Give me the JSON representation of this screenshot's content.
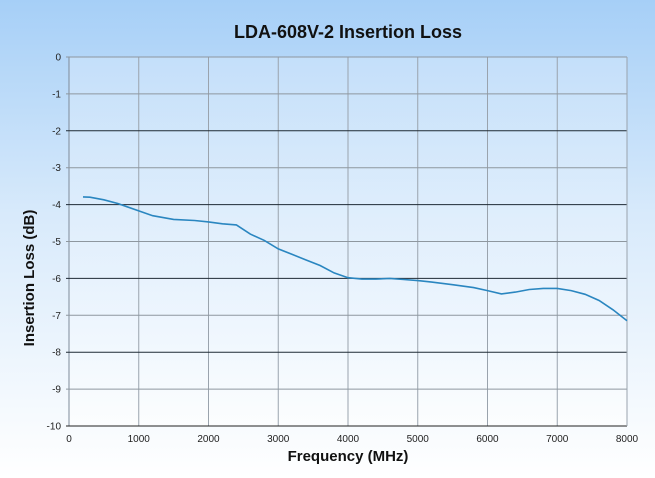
{
  "chart_data": {
    "type": "line",
    "title": "LDA-608V-2 Insertion Loss",
    "xlabel": "Frequency (MHz)",
    "ylabel": "Insertion Loss (dB)",
    "xlim": [
      0,
      8000
    ],
    "ylim": [
      -10,
      0
    ],
    "xticks": [
      0,
      1000,
      2000,
      3000,
      4000,
      5000,
      6000,
      7000,
      8000
    ],
    "yticks": [
      0,
      -1,
      -2,
      -3,
      -4,
      -5,
      -6,
      -7,
      -8,
      -9,
      -10
    ],
    "grid": true,
    "line_color": "#2a86c0",
    "series": [
      {
        "name": "Insertion Loss",
        "x": [
          200,
          300,
          500,
          700,
          1000,
          1200,
          1500,
          1800,
          2000,
          2200,
          2400,
          2600,
          2800,
          3000,
          3200,
          3400,
          3600,
          3800,
          4000,
          4200,
          4400,
          4600,
          4800,
          5000,
          5200,
          5500,
          5800,
          6000,
          6200,
          6400,
          6600,
          6800,
          7000,
          7200,
          7400,
          7600,
          7800,
          8000
        ],
        "y": [
          -3.79,
          -3.8,
          -3.87,
          -3.97,
          -4.17,
          -4.3,
          -4.4,
          -4.43,
          -4.47,
          -4.52,
          -4.55,
          -4.8,
          -4.97,
          -5.2,
          -5.35,
          -5.5,
          -5.65,
          -5.85,
          -5.98,
          -6.02,
          -6.02,
          -6.0,
          -6.03,
          -6.06,
          -6.1,
          -6.17,
          -6.25,
          -6.33,
          -6.42,
          -6.37,
          -6.3,
          -6.27,
          -6.27,
          -6.33,
          -6.43,
          -6.6,
          -6.85,
          -7.15
        ]
      }
    ]
  }
}
